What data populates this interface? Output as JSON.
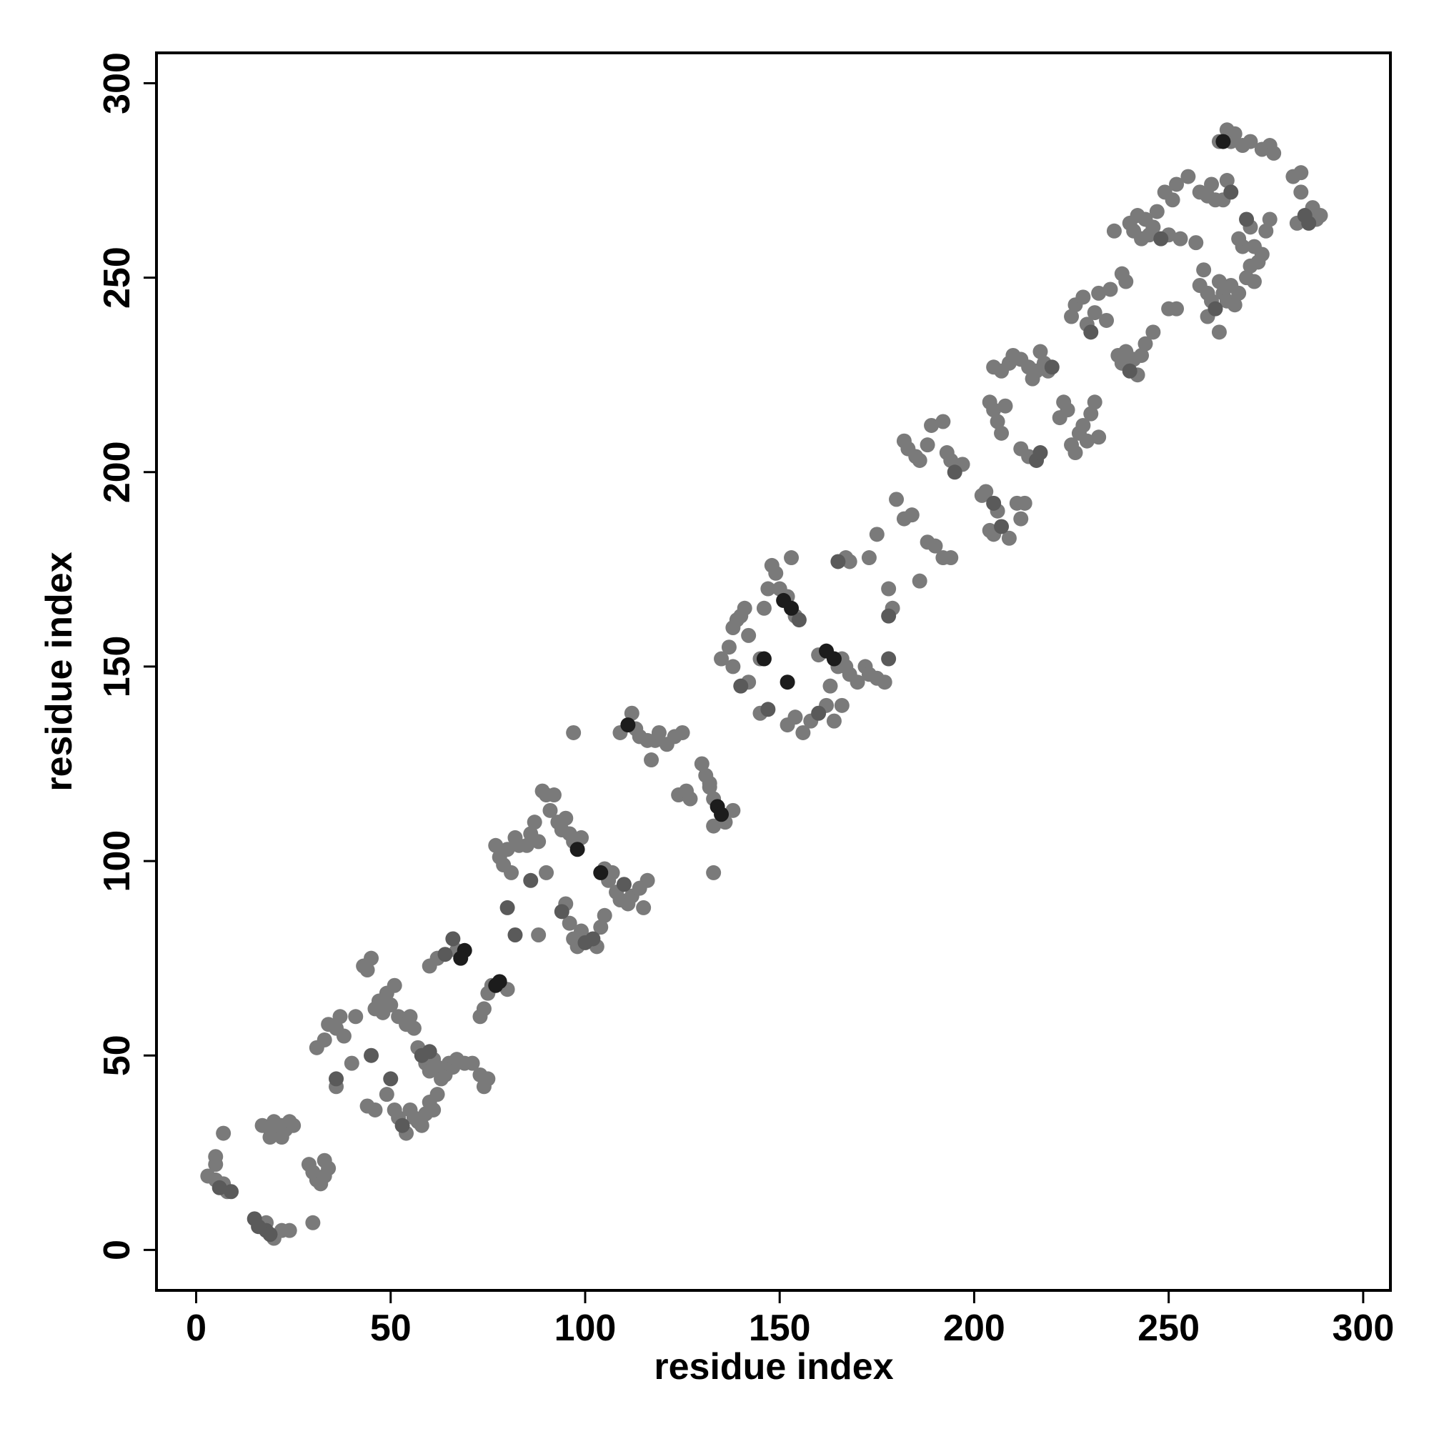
{
  "chart_data": {
    "type": "scatter",
    "xlabel": "residue index",
    "ylabel": "residue index",
    "xlim": [
      -10.2,
      307
    ],
    "ylim": [
      -10.4,
      307.8
    ],
    "xticks": [
      0,
      50,
      100,
      150,
      200,
      250,
      300
    ],
    "yticks": [
      0,
      50,
      100,
      150,
      200,
      250,
      300
    ],
    "series": [
      {
        "color": "#7a7a7a",
        "x": [
          3,
          5,
          8,
          5,
          5,
          7,
          7,
          20,
          18,
          22,
          24,
          17,
          19,
          20,
          21,
          22,
          23,
          24,
          25,
          22,
          19,
          29,
          30,
          31,
          32,
          33,
          33,
          34,
          30,
          31,
          33,
          34,
          36,
          37,
          38,
          36,
          40,
          41,
          43,
          44,
          45,
          44,
          46,
          46,
          47,
          48,
          49,
          50,
          51,
          52,
          54,
          55,
          56,
          49,
          51,
          52,
          54,
          55,
          56,
          57,
          58,
          59,
          60,
          61,
          57,
          59,
          61,
          62,
          63,
          64,
          65,
          66,
          67,
          60,
          62,
          63,
          60,
          62,
          67,
          73,
          74,
          75,
          76,
          80,
          71,
          73,
          74,
          75,
          69,
          77,
          78,
          79,
          80,
          81,
          82,
          83,
          85,
          86,
          87,
          88,
          89,
          90,
          91,
          92,
          93,
          94,
          95,
          96,
          97,
          99,
          90,
          88,
          95,
          96,
          97,
          98,
          99,
          103,
          104,
          105,
          105,
          106,
          107,
          108,
          109,
          111,
          112,
          115,
          116,
          114,
          109,
          112,
          113,
          114,
          116,
          117,
          118,
          119,
          121,
          123,
          125,
          97,
          124,
          126,
          127,
          130,
          131,
          132,
          133,
          136,
          138,
          133,
          133,
          132,
          135,
          137,
          138,
          139,
          140,
          141,
          142,
          138,
          142,
          145,
          147,
          148,
          149,
          150,
          152,
          154,
          146,
          145,
          153,
          152,
          154,
          156,
          158,
          162,
          164,
          163,
          165,
          166,
          167,
          168,
          170,
          172,
          173,
          175,
          177,
          160,
          166,
          167,
          168,
          173,
          175,
          178,
          179,
          180,
          182,
          184,
          186,
          188,
          190,
          192,
          194,
          182,
          183,
          185,
          186,
          188,
          189,
          192,
          193,
          194,
          197,
          202,
          203,
          206,
          204,
          205,
          209,
          211,
          212,
          213,
          204,
          205,
          206,
          207,
          208,
          205,
          207,
          209,
          210,
          212,
          214,
          215,
          216,
          217,
          218,
          219,
          212,
          214,
          222,
          223,
          224,
          225,
          226,
          227,
          228,
          229,
          230,
          231,
          232,
          225,
          226,
          228,
          229,
          231,
          232,
          234,
          235,
          236,
          237,
          238,
          239,
          241,
          242,
          243,
          244,
          246,
          238,
          239,
          240,
          241,
          242,
          243,
          244,
          245,
          246,
          247,
          249,
          250,
          251,
          252,
          253,
          255,
          257,
          250,
          252,
          258,
          259,
          260,
          261,
          263,
          264,
          265,
          266,
          267,
          268,
          260,
          263,
          270,
          271,
          272,
          273,
          274,
          272,
          275,
          271,
          269,
          268,
          258,
          260,
          261,
          262,
          263,
          265,
          266,
          267,
          269,
          271,
          274,
          276,
          277,
          265,
          264,
          282,
          284,
          284,
          287,
          288,
          289,
          283,
          276
        ],
        "values": [
          19,
          18,
          15,
          22,
          24,
          30,
          17,
          3,
          7,
          5,
          5,
          32,
          31,
          33,
          30,
          32,
          31,
          33,
          32,
          29,
          29,
          22,
          20,
          18,
          17,
          23,
          19,
          21,
          7,
          52,
          54,
          58,
          57,
          60,
          55,
          42,
          48,
          60,
          73,
          72,
          75,
          37,
          36,
          62,
          64,
          61,
          66,
          63,
          68,
          60,
          58,
          60,
          57,
          40,
          36,
          34,
          30,
          36,
          34,
          33,
          32,
          35,
          38,
          36,
          52,
          48,
          49,
          47,
          46,
          45,
          48,
          47,
          49,
          46,
          40,
          44,
          73,
          75,
          77,
          60,
          62,
          66,
          68,
          67,
          48,
          45,
          42,
          44,
          48,
          104,
          101,
          99,
          103,
          97,
          106,
          104,
          104,
          107,
          110,
          105,
          118,
          117,
          113,
          117,
          110,
          108,
          111,
          107,
          105,
          106,
          97,
          81,
          89,
          84,
          80,
          78,
          82,
          78,
          83,
          86,
          98,
          95,
          97,
          92,
          90,
          89,
          91,
          88,
          95,
          93,
          133,
          138,
          134,
          132,
          131,
          126,
          131,
          133,
          130,
          132,
          133,
          133,
          117,
          118,
          116,
          125,
          122,
          119,
          116,
          110,
          113,
          109,
          97,
          120,
          152,
          155,
          160,
          162,
          163,
          165,
          158,
          150,
          146,
          152,
          170,
          176,
          174,
          170,
          168,
          163,
          165,
          138,
          178,
          135,
          137,
          133,
          136,
          140,
          136,
          145,
          150,
          152,
          150,
          148,
          146,
          150,
          148,
          147,
          146,
          153,
          140,
          178,
          177,
          178,
          184,
          170,
          165,
          193,
          188,
          189,
          172,
          182,
          181,
          178,
          178,
          208,
          206,
          204,
          203,
          207,
          212,
          213,
          205,
          203,
          202,
          194,
          195,
          190,
          185,
          184,
          183,
          192,
          188,
          192,
          218,
          216,
          213,
          210,
          217,
          227,
          226,
          228,
          230,
          229,
          227,
          224,
          226,
          231,
          228,
          226,
          206,
          204,
          214,
          218,
          216,
          207,
          205,
          210,
          212,
          208,
          215,
          218,
          209,
          240,
          243,
          245,
          238,
          241,
          246,
          239,
          247,
          262,
          230,
          228,
          231,
          229,
          225,
          230,
          233,
          236,
          251,
          249,
          264,
          262,
          266,
          260,
          265,
          261,
          263,
          267,
          272,
          261,
          270,
          274,
          260,
          276,
          259,
          242,
          242,
          248,
          252,
          246,
          244,
          249,
          246,
          244,
          248,
          243,
          246,
          240,
          236,
          250,
          253,
          249,
          254,
          256,
          258,
          262,
          263,
          258,
          260,
          272,
          271,
          274,
          270,
          285,
          288,
          285,
          287,
          284,
          285,
          283,
          284,
          282,
          275,
          270,
          276,
          277,
          272,
          268,
          265,
          266,
          264,
          265
        ]
      },
      {
        "color": "#5a5a5a",
        "x": [
          15,
          16,
          18,
          19,
          9,
          6,
          36,
          45,
          50,
          58,
          60,
          64,
          66,
          86,
          94,
          100,
          102,
          140,
          147,
          165,
          178,
          178,
          195,
          216,
          217,
          205,
          207,
          230,
          240,
          266,
          285,
          286,
          270,
          53,
          80,
          82,
          110,
          155,
          160,
          220,
          248,
          262
        ],
        "values": [
          8,
          6,
          5,
          4,
          15,
          16,
          44,
          50,
          44,
          50,
          51,
          76,
          80,
          95,
          87,
          79,
          80,
          145,
          139,
          177,
          163,
          152,
          200,
          203,
          205,
          192,
          186,
          236,
          226,
          272,
          266,
          264,
          265,
          32,
          88,
          81,
          94,
          162,
          138,
          227,
          260,
          242
        ]
      },
      {
        "color": "#1c1c1c",
        "x": [
          69,
          68,
          77,
          78,
          146,
          152,
          151,
          153,
          164,
          162,
          264,
          111,
          134,
          135,
          98,
          104
        ],
        "values": [
          77,
          75,
          68,
          69,
          152,
          146,
          167,
          165,
          152,
          154,
          285,
          135,
          114,
          112,
          103,
          97
        ]
      }
    ]
  }
}
